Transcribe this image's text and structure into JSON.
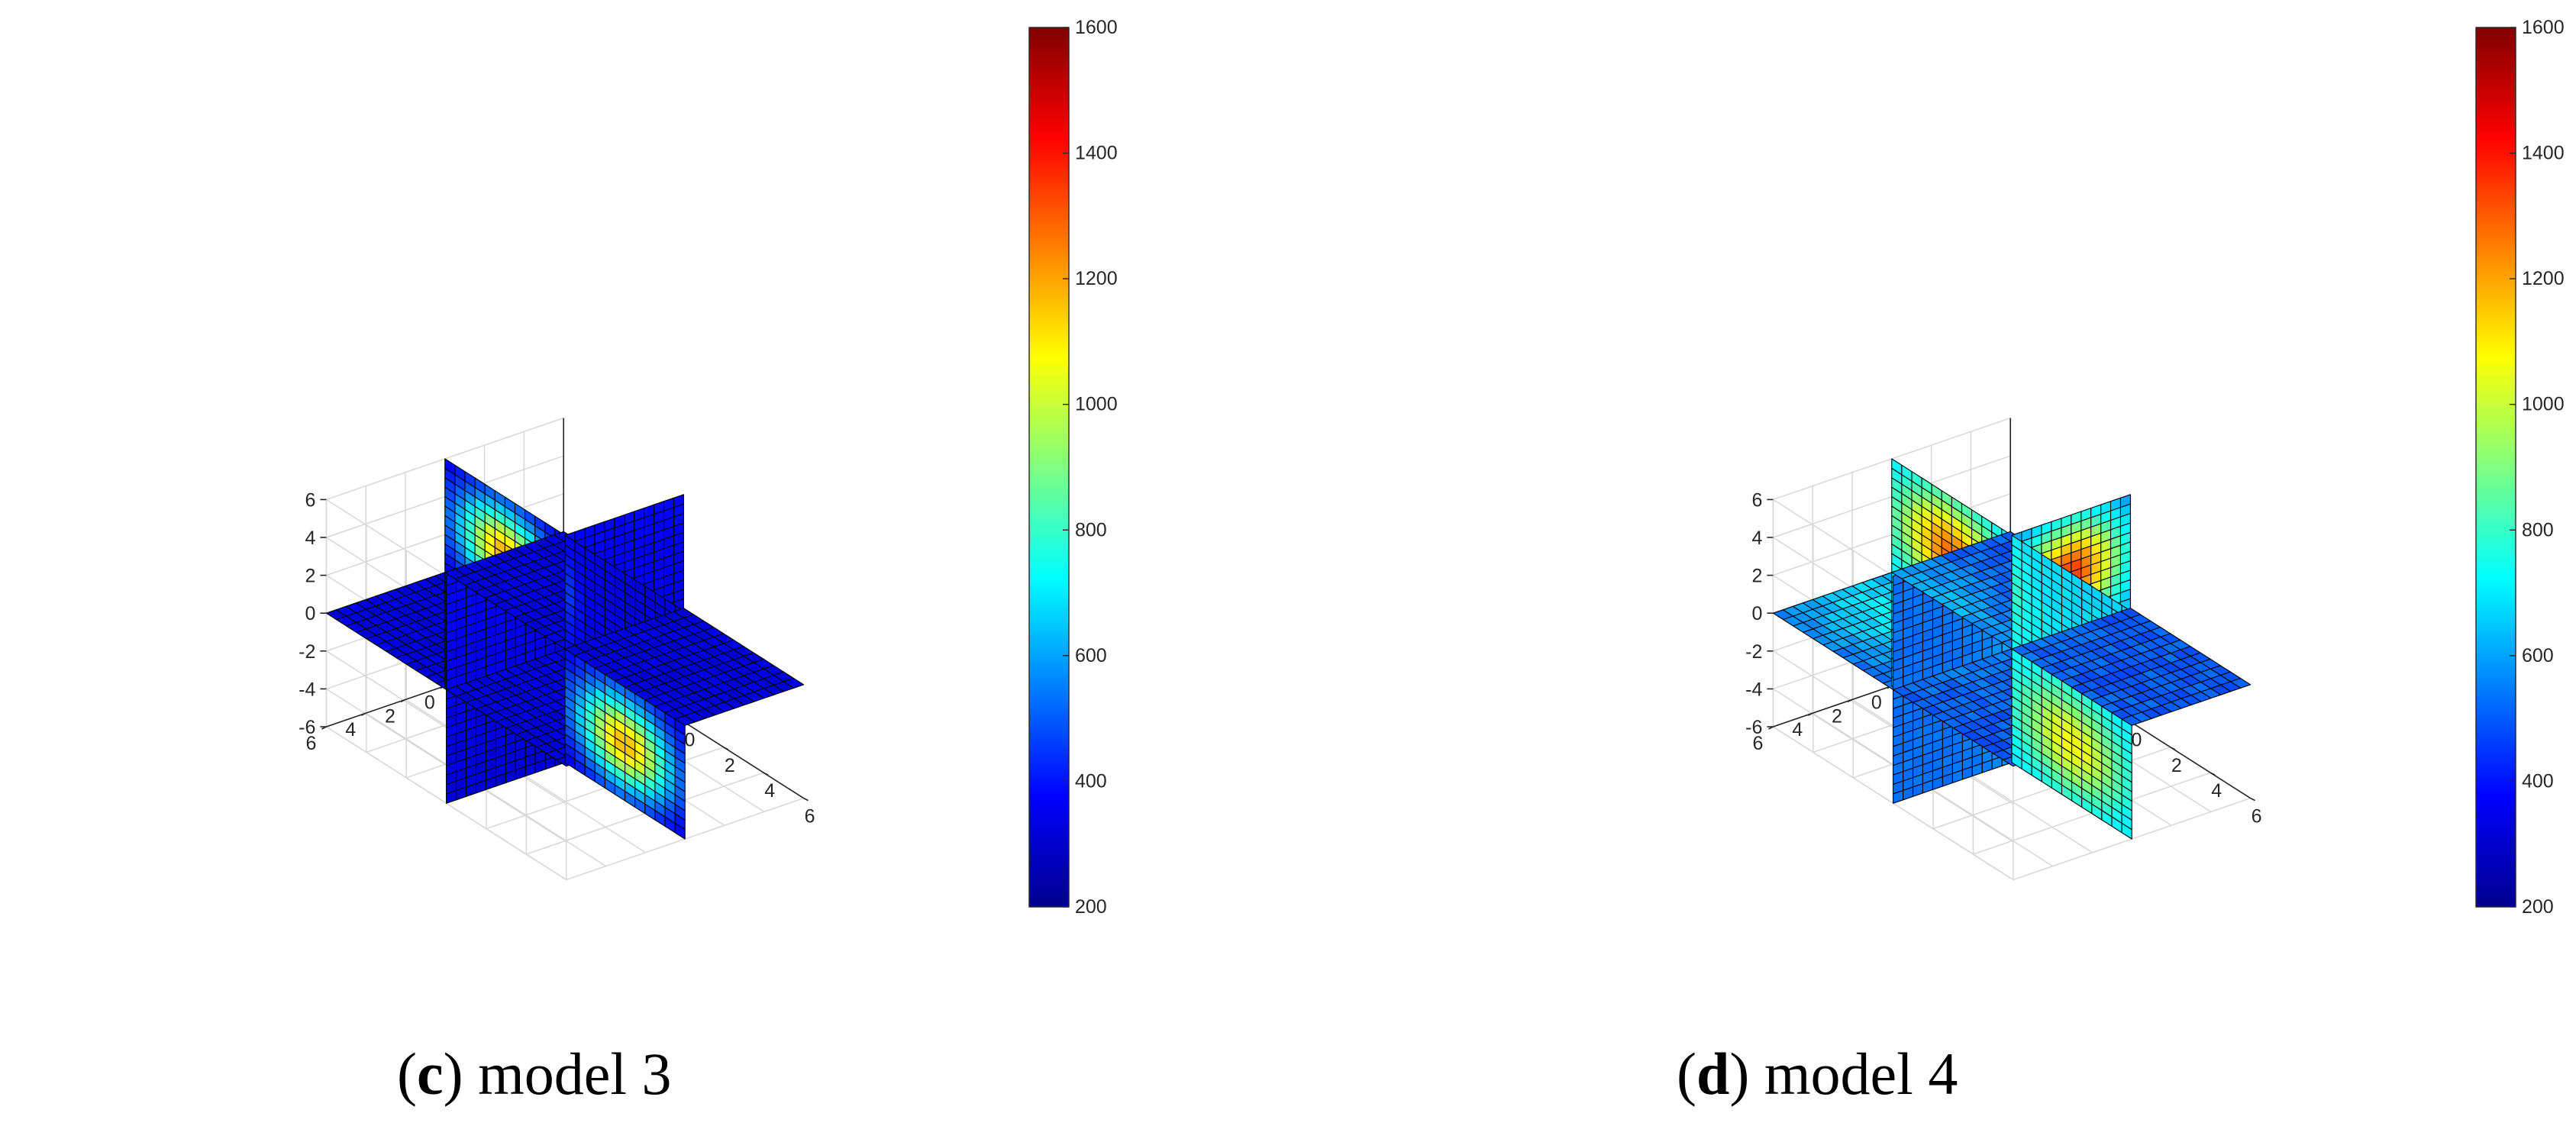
{
  "figure": {
    "panels": [
      {
        "id": "c",
        "caption_label": "c",
        "caption_text": " model 3"
      },
      {
        "id": "d",
        "caption_label": "d",
        "caption_text": " model 4"
      }
    ]
  },
  "chart_data": [
    {
      "type": "heatmap",
      "subtype": "3d-slice",
      "title": "",
      "caption": "(c) model 3",
      "xlim": [
        -6,
        6
      ],
      "ylim": [
        -6,
        6
      ],
      "zlim": [
        -6,
        6
      ],
      "x_ticks": [
        "-6",
        "-4",
        "-2",
        "0",
        "2",
        "4",
        "6"
      ],
      "y_ticks": [
        "6",
        "4",
        "2",
        "0",
        "-2",
        "-4",
        "-6"
      ],
      "z_ticks": [
        "6",
        "4",
        "2",
        "0",
        "-2",
        "-4",
        "-6"
      ],
      "grid": true,
      "colormap": "jet",
      "colorbar": {
        "range": [
          200,
          1600
        ],
        "ticks": [
          "1600",
          "1400",
          "1200",
          "1000",
          "800",
          "600",
          "400",
          "200"
        ]
      },
      "slices": [
        {
          "plane": "x=0",
          "value_range": [
            300,
            420
          ],
          "anomaly": "none"
        },
        {
          "plane": "y=0",
          "value_range": [
            320,
            1180
          ],
          "anomaly": "peak ~1150 at upper-back quadrant and lower-front-left quadrant"
        },
        {
          "plane": "z=0",
          "value_range": [
            300,
            380
          ],
          "anomaly": "none"
        }
      ]
    },
    {
      "type": "heatmap",
      "subtype": "3d-slice",
      "title": "",
      "caption": "(d) model 4",
      "xlim": [
        -6,
        6
      ],
      "ylim": [
        -6,
        6
      ],
      "zlim": [
        -6,
        6
      ],
      "x_ticks": [
        "-6",
        "-4",
        "-2",
        "0",
        "2",
        "4",
        "6"
      ],
      "y_ticks": [
        "6",
        "4",
        "2",
        "0",
        "-2",
        "-4",
        "-6"
      ],
      "z_ticks": [
        "6",
        "4",
        "2",
        "0",
        "-2",
        "-4",
        "-6"
      ],
      "grid": true,
      "colormap": "jet",
      "colorbar": {
        "range": [
          200,
          1600
        ],
        "ticks": [
          "1600",
          "1400",
          "1200",
          "1000",
          "800",
          "600",
          "400",
          "200"
        ]
      },
      "slices": [
        {
          "plane": "x=0",
          "value_range": [
            500,
            1320
          ],
          "anomaly": "peak ~1300 in upper-left and lower-left quadrants"
        },
        {
          "plane": "y=0",
          "value_range": [
            650,
            1300
          ],
          "anomaly": "peak ~1250 upper-back"
        },
        {
          "plane": "z=0",
          "value_range": [
            450,
            750
          ],
          "anomaly": "background"
        }
      ]
    }
  ]
}
